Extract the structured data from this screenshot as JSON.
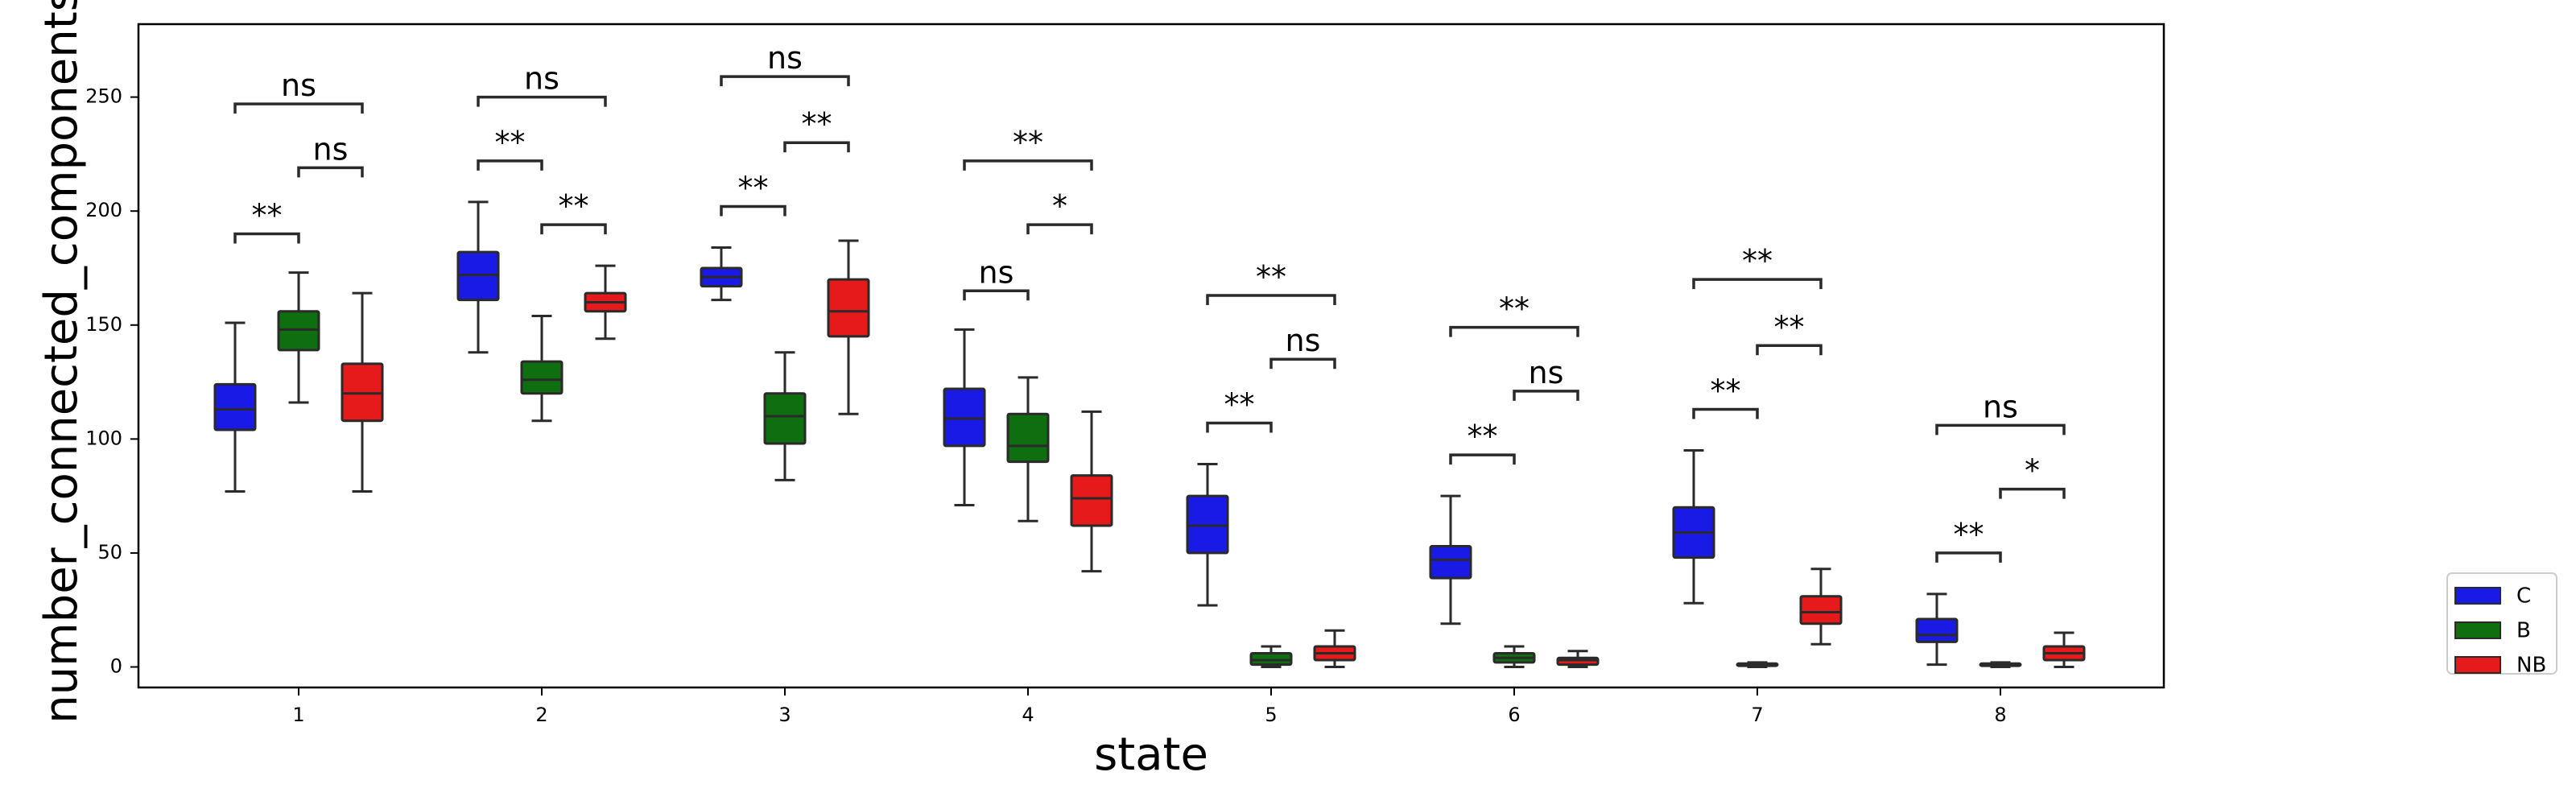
{
  "chart_data": {
    "type": "box",
    "xlabel": "state",
    "ylabel": "number_connected_components",
    "ylim": [
      -9,
      282
    ],
    "yticks": [
      0,
      50,
      100,
      150,
      200,
      250
    ],
    "categories": [
      "1",
      "2",
      "3",
      "4",
      "5",
      "6",
      "7",
      "8"
    ],
    "legend_position": "outside right",
    "series": [
      {
        "name": "C",
        "color": "#1a1ae6",
        "boxes": [
          {
            "min": 77,
            "q1": 104,
            "median": 113,
            "q3": 124,
            "max": 151
          },
          {
            "min": 138,
            "q1": 161,
            "median": 172,
            "q3": 182,
            "max": 204
          },
          {
            "min": 161,
            "q1": 167,
            "median": 171,
            "q3": 175,
            "max": 184
          },
          {
            "min": 71,
            "q1": 97,
            "median": 109,
            "q3": 122,
            "max": 148
          },
          {
            "min": 27,
            "q1": 50,
            "median": 62,
            "q3": 75,
            "max": 89
          },
          {
            "min": 19,
            "q1": 39,
            "median": 47,
            "q3": 53,
            "max": 75
          },
          {
            "min": 28,
            "q1": 48,
            "median": 59,
            "q3": 70,
            "max": 95
          },
          {
            "min": 1,
            "q1": 11,
            "median": 14,
            "q3": 21,
            "max": 32
          }
        ]
      },
      {
        "name": "B",
        "color": "#0f6e0f",
        "boxes": [
          {
            "min": 116,
            "q1": 139,
            "median": 148,
            "q3": 156,
            "max": 173
          },
          {
            "min": 108,
            "q1": 120,
            "median": 126,
            "q3": 134,
            "max": 154
          },
          {
            "min": 82,
            "q1": 98,
            "median": 110,
            "q3": 120,
            "max": 138
          },
          {
            "min": 64,
            "q1": 90,
            "median": 97,
            "q3": 111,
            "max": 127
          },
          {
            "min": 0,
            "q1": 1,
            "median": 3,
            "q3": 6,
            "max": 9
          },
          {
            "min": 0,
            "q1": 2,
            "median": 4,
            "q3": 6,
            "max": 9
          },
          {
            "min": 0,
            "q1": 0.5,
            "median": 1,
            "q3": 1.5,
            "max": 2
          },
          {
            "min": 0,
            "q1": 0.5,
            "median": 1,
            "q3": 1.5,
            "max": 2
          }
        ]
      },
      {
        "name": "NB",
        "color": "#e61a1a",
        "boxes": [
          {
            "min": 77,
            "q1": 108,
            "median": 120,
            "q3": 133,
            "max": 164
          },
          {
            "min": 144,
            "q1": 156,
            "median": 160,
            "q3": 164,
            "max": 176
          },
          {
            "min": 111,
            "q1": 145,
            "median": 156,
            "q3": 170,
            "max": 187
          },
          {
            "min": 42,
            "q1": 62,
            "median": 74,
            "q3": 84,
            "max": 112
          },
          {
            "min": 0,
            "q1": 3,
            "median": 6,
            "q3": 9,
            "max": 16
          },
          {
            "min": 0,
            "q1": 1,
            "median": 3,
            "q3": 4,
            "max": 7
          },
          {
            "min": 10,
            "q1": 19,
            "median": 24,
            "q3": 31,
            "max": 43
          },
          {
            "min": 0,
            "q1": 3,
            "median": 6,
            "q3": 9,
            "max": 15
          }
        ]
      }
    ],
    "comparisons": [
      {
        "category": 1,
        "from": "C",
        "to": "B",
        "label": "**",
        "y": 190
      },
      {
        "category": 1,
        "from": "B",
        "to": "NB",
        "label": "ns",
        "y": 219
      },
      {
        "category": 1,
        "from": "C",
        "to": "NB",
        "label": "ns",
        "y": 247
      },
      {
        "category": 2,
        "from": "C",
        "to": "B",
        "label": "**",
        "y": 222
      },
      {
        "category": 2,
        "from": "B",
        "to": "NB",
        "label": "**",
        "y": 194
      },
      {
        "category": 2,
        "from": "C",
        "to": "NB",
        "label": "ns",
        "y": 250
      },
      {
        "category": 3,
        "from": "C",
        "to": "B",
        "label": "**",
        "y": 202
      },
      {
        "category": 3,
        "from": "B",
        "to": "NB",
        "label": "**",
        "y": 230
      },
      {
        "category": 3,
        "from": "C",
        "to": "NB",
        "label": "ns",
        "y": 259
      },
      {
        "category": 4,
        "from": "C",
        "to": "B",
        "label": "ns",
        "y": 165
      },
      {
        "category": 4,
        "from": "B",
        "to": "NB",
        "label": "*",
        "y": 194
      },
      {
        "category": 4,
        "from": "C",
        "to": "NB",
        "label": "**",
        "y": 222
      },
      {
        "category": 5,
        "from": "C",
        "to": "B",
        "label": "**",
        "y": 107
      },
      {
        "category": 5,
        "from": "B",
        "to": "NB",
        "label": "ns",
        "y": 135
      },
      {
        "category": 5,
        "from": "C",
        "to": "NB",
        "label": "**",
        "y": 163
      },
      {
        "category": 6,
        "from": "C",
        "to": "B",
        "label": "**",
        "y": 93
      },
      {
        "category": 6,
        "from": "B",
        "to": "NB",
        "label": "ns",
        "y": 121
      },
      {
        "category": 6,
        "from": "C",
        "to": "NB",
        "label": "**",
        "y": 149
      },
      {
        "category": 7,
        "from": "C",
        "to": "B",
        "label": "**",
        "y": 113
      },
      {
        "category": 7,
        "from": "B",
        "to": "NB",
        "label": "**",
        "y": 141
      },
      {
        "category": 7,
        "from": "C",
        "to": "NB",
        "label": "**",
        "y": 170
      },
      {
        "category": 8,
        "from": "C",
        "to": "B",
        "label": "**",
        "y": 50
      },
      {
        "category": 8,
        "from": "B",
        "to": "NB",
        "label": "*",
        "y": 78
      },
      {
        "category": 8,
        "from": "C",
        "to": "NB",
        "label": "ns",
        "y": 106
      }
    ]
  }
}
